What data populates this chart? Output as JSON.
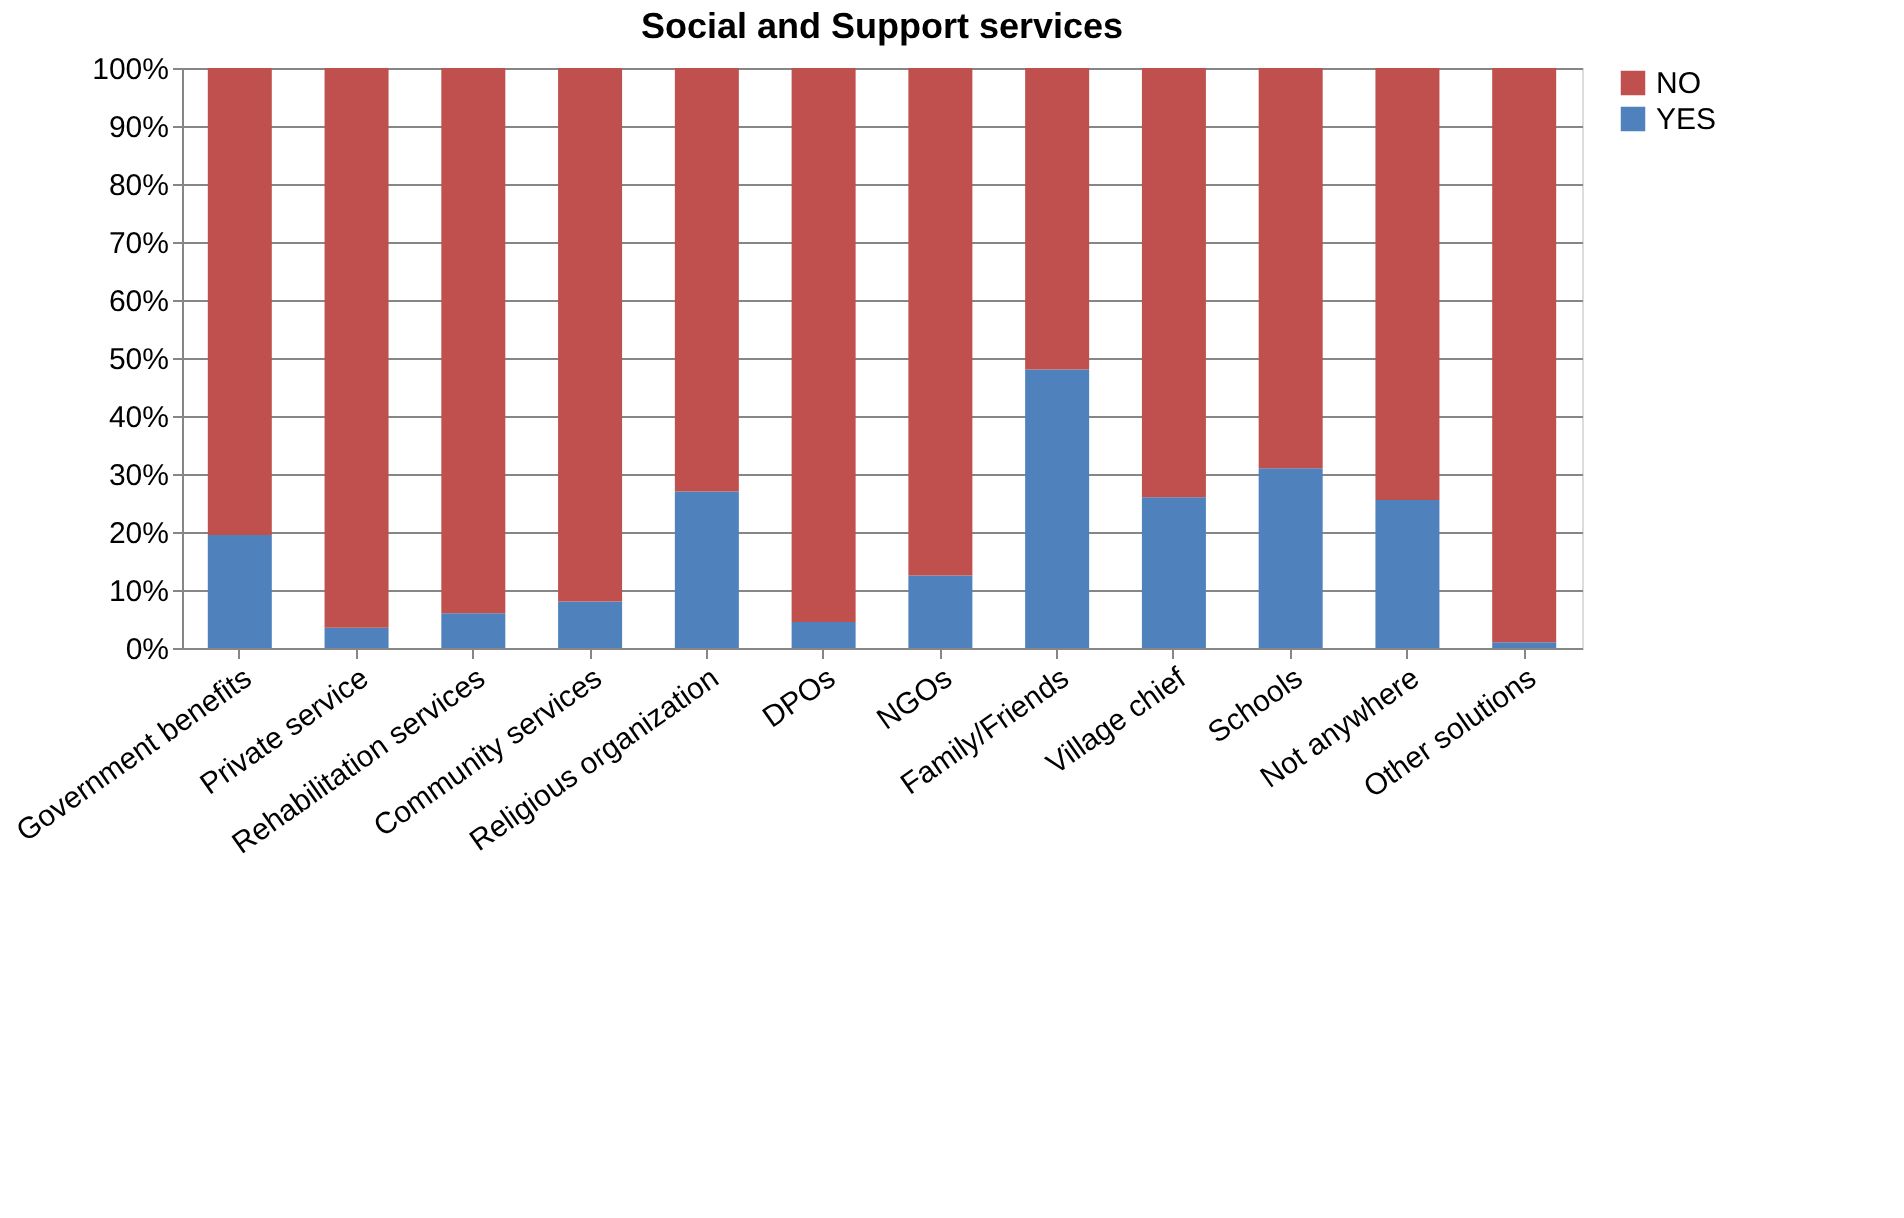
{
  "chart_data": {
    "type": "bar",
    "stacked": true,
    "title": "Social and Support services",
    "categories": [
      "Government benefits",
      "Private service",
      "Rehabilitation services",
      "Community services",
      "Religious organization",
      "DPOs",
      "NGOs",
      "Family/Friends",
      "Village chief",
      "Schools",
      "Not anywhere",
      "Other solutions"
    ],
    "series": [
      {
        "name": "YES",
        "color": "#4f81bd",
        "values": [
          19.5,
          3.5,
          6,
          8,
          27,
          4.5,
          12.5,
          48,
          26,
          31,
          25.5,
          1
        ]
      },
      {
        "name": "NO",
        "color": "#c0504d",
        "values": [
          80.5,
          96.5,
          94,
          92,
          73,
          95.5,
          87.5,
          52,
          74,
          69,
          74.5,
          99
        ]
      }
    ],
    "ylim": [
      0,
      100
    ],
    "yticks": [
      {
        "value": 0,
        "label": "0%"
      },
      {
        "value": 10,
        "label": "10%"
      },
      {
        "value": 20,
        "label": "20%"
      },
      {
        "value": 30,
        "label": "30%"
      },
      {
        "value": 40,
        "label": "40%"
      },
      {
        "value": 50,
        "label": "50%"
      },
      {
        "value": 60,
        "label": "60%"
      },
      {
        "value": 70,
        "label": "70%"
      },
      {
        "value": 80,
        "label": "80%"
      },
      {
        "value": 90,
        "label": "90%"
      },
      {
        "value": 100,
        "label": "100%"
      }
    ],
    "grid": "y",
    "legend": "right"
  }
}
